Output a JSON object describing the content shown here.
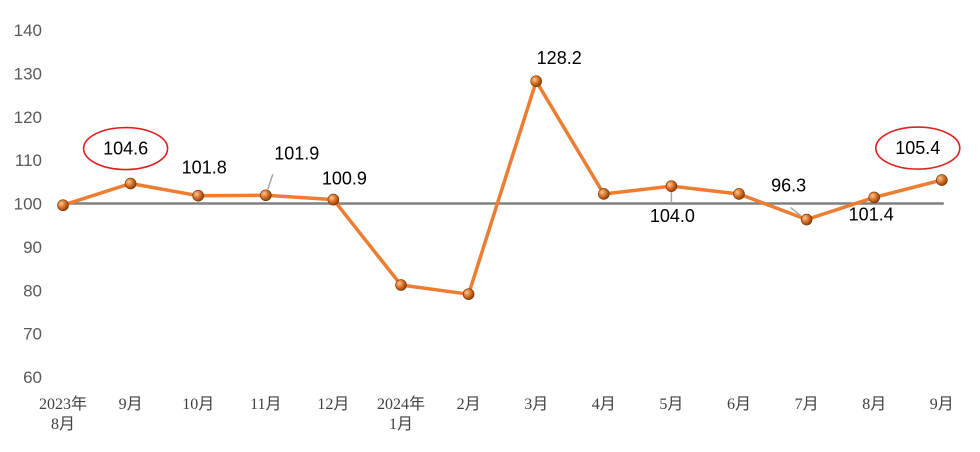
{
  "chart_data": {
    "type": "line",
    "title": "",
    "xlabel": "",
    "ylabel": "",
    "ylim": [
      60,
      140
    ],
    "yticks": [
      60,
      70,
      80,
      90,
      100,
      110,
      120,
      130,
      140
    ],
    "reference_line": 100,
    "categories": [
      [
        "2023年",
        "8月"
      ],
      [
        "9月"
      ],
      [
        "10月"
      ],
      [
        "11月"
      ],
      [
        "12月"
      ],
      [
        "2024年",
        "1月"
      ],
      [
        "2月"
      ],
      [
        "3月"
      ],
      [
        "4月"
      ],
      [
        "5月"
      ],
      [
        "6月"
      ],
      [
        "7月"
      ],
      [
        "8月"
      ],
      [
        "9月"
      ]
    ],
    "series": [
      {
        "values": [
          99.6,
          104.6,
          101.8,
          101.9,
          100.9,
          81.2,
          79.1,
          128.2,
          102.2,
          104.0,
          102.2,
          96.3,
          101.4,
          105.4
        ]
      }
    ],
    "data_labels": [
      {
        "index": 1,
        "text": "104.6",
        "highlight": true
      },
      {
        "index": 2,
        "text": "101.8",
        "highlight": false
      },
      {
        "index": 3,
        "text": "101.9",
        "highlight": false
      },
      {
        "index": 4,
        "text": "100.9",
        "highlight": false
      },
      {
        "index": 7,
        "text": "128.2",
        "highlight": false
      },
      {
        "index": 9,
        "text": "104.0",
        "highlight": false
      },
      {
        "index": 11,
        "text": "96.3",
        "highlight": false
      },
      {
        "index": 12,
        "text": "101.4",
        "highlight": false
      },
      {
        "index": 13,
        "text": "105.4",
        "highlight": true
      }
    ],
    "colors": {
      "line": "#ED7D31",
      "marker": "#C55A11",
      "reference": "#808080",
      "highlight_circle": "#E02020"
    },
    "grid": false,
    "legend": "none"
  }
}
